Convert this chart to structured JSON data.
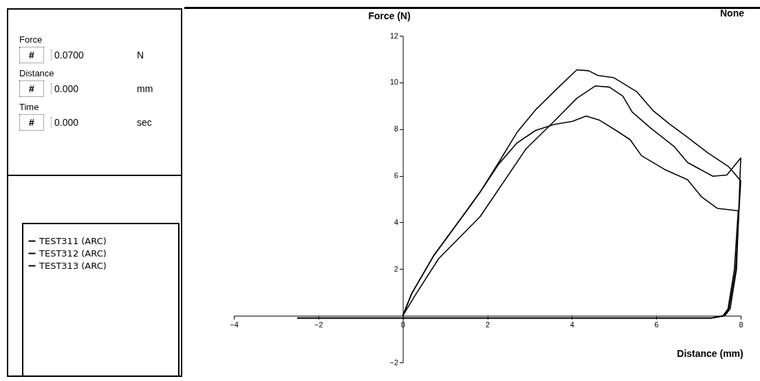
{
  "chart_data": [
    {
      "type": "other",
      "annotations": [
        "Force",
        "#",
        "0.0700",
        "N",
        "Distance",
        "#",
        "0.000",
        "mm",
        "Time",
        "#",
        "0.000",
        "sec"
      ]
    },
    {
      "type": "line",
      "ylabel": "Force (N)",
      "xlabel": "Distance (mm)",
      "annotations": [
        "None"
      ],
      "xlim": [
        -4,
        8
      ],
      "xticks": [
        -4,
        -2,
        0,
        2,
        4,
        6,
        8
      ],
      "ylim": [
        -2,
        12
      ],
      "yticks": [
        -2,
        2,
        4,
        6,
        8,
        10,
        12
      ],
      "grid": false,
      "legend": "left",
      "marker": "none",
      "line_style": "solid",
      "series": [
        {
          "name": "TEST311 (ARC)",
          "color": "#000000",
          "x": [
            0,
            0.21,
            0.74,
            1.51,
            1.83,
            2.27,
            2.7,
            3.14,
            3.69,
            4.12,
            4.4,
            4.62,
            5.0,
            5.54,
            5.92,
            6.3,
            6.74,
            7.23,
            7.72,
            8.0,
            7.88,
            7.72,
            7.6,
            7.3,
            4,
            0,
            -2.5
          ],
          "values": [
            0,
            0.95,
            2.6,
            4.5,
            5.3,
            6.57,
            7.85,
            8.82,
            9.8,
            10.54,
            10.5,
            10.3,
            10.2,
            9.6,
            8.8,
            8.24,
            7.65,
            6.97,
            6.38,
            5.78,
            2.0,
            0.3,
            0,
            -0.1,
            -0.1,
            -0.1,
            -0.1
          ]
        },
        {
          "name": "TEST312 (ARC)",
          "color": "#000000",
          "x": [
            0,
            0.3,
            0.85,
            1.83,
            2.92,
            3.58,
            4.12,
            4.56,
            4.89,
            5.21,
            5.43,
            5.87,
            6.42,
            6.74,
            7.34,
            7.67,
            8.0,
            7.9,
            7.75,
            7.62,
            7.3,
            4,
            0,
            -2.5
          ],
          "values": [
            0,
            0.9,
            2.45,
            4.25,
            7.16,
            8.33,
            9.32,
            9.85,
            9.8,
            9.41,
            8.73,
            8.04,
            7.26,
            6.57,
            5.98,
            6.03,
            6.76,
            2.0,
            0.3,
            0,
            -0.1,
            -0.1,
            -0.1,
            -0.1
          ]
        },
        {
          "name": "TEST313 (ARC)",
          "color": "#000000",
          "x": [
            0,
            0.21,
            0.74,
            1.51,
            1.83,
            2.27,
            2.7,
            3.14,
            3.58,
            4.01,
            4.34,
            4.66,
            5.05,
            5.38,
            5.65,
            6.2,
            6.74,
            7.07,
            7.45,
            7.94,
            7.85,
            7.7,
            7.58,
            7.3,
            4,
            0,
            -2.5
          ],
          "values": [
            0,
            0.95,
            2.6,
            4.5,
            5.3,
            6.5,
            7.4,
            7.94,
            8.2,
            8.33,
            8.56,
            8.38,
            7.94,
            7.55,
            6.86,
            6.27,
            5.83,
            5.1,
            4.6,
            4.5,
            2.0,
            0.3,
            0,
            -0.1,
            -0.1,
            -0.1,
            -0.1
          ]
        }
      ]
    }
  ]
}
